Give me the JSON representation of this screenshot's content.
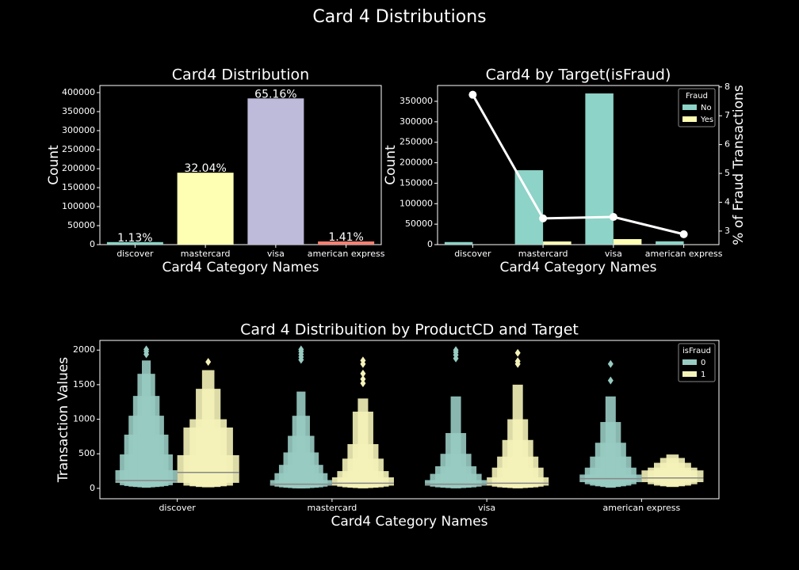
{
  "title": "Card 4 Distributions",
  "chart_data": [
    {
      "type": "bar",
      "title": "Card4 Distribution",
      "xlabel": "Card4 Category Names",
      "ylabel": "Count",
      "categories": [
        "discover",
        "mastercard",
        "visa",
        "american express"
      ],
      "values": [
        6673,
        189217,
        384767,
        8328
      ],
      "colors": [
        "#8dd3c7",
        "#ffffb3",
        "#bebada",
        "#fb8072"
      ],
      "annotations": [
        "1.13%",
        "32.04%",
        "65.16%",
        "1.41%"
      ],
      "ylim": [
        0,
        418750
      ],
      "yticks": [
        0,
        50000,
        100000,
        150000,
        200000,
        250000,
        300000,
        350000,
        400000
      ]
    },
    {
      "type": "bar",
      "title": "Card4 by Target(isFraud)",
      "xlabel": "Card4 Category Names",
      "ylabel": "Count",
      "y2label": "% of Fraud Transactions",
      "categories": [
        "discover",
        "mastercard",
        "visa",
        "american express"
      ],
      "legend_title": "Fraud",
      "legend": "upper right",
      "series": [
        {
          "name": "No",
          "color": "#8dd3c7",
          "values": [
            6300,
            181750,
            369300,
            8100
          ]
        },
        {
          "name": "Yes",
          "color": "#ffffb3",
          "values": [
            150,
            7700,
            13500,
            230
          ]
        }
      ],
      "line": {
        "color": "#ffffff",
        "axis": "y2",
        "values": [
          7.73,
          3.44,
          3.49,
          2.89
        ]
      },
      "ylim": [
        0,
        388700
      ],
      "yticks": [
        0,
        50000,
        100000,
        150000,
        200000,
        250000,
        300000,
        350000
      ],
      "y2lim": [
        2.53,
        8.05
      ],
      "y2ticks": [
        3,
        4,
        5,
        6,
        7,
        8
      ]
    },
    {
      "type": "boxen",
      "title": "Card 4 Distribuition by ProductCD and Target",
      "xlabel": "Card4 Category Names",
      "ylabel": "Transaction Values",
      "categories": [
        "discover",
        "mastercard",
        "visa",
        "american express"
      ],
      "legend_title": "isFraud",
      "legend": "upper right",
      "series": [
        {
          "name": "0",
          "color": "#98cbc2",
          "boxes": [
            {
              "median": 114,
              "levels": [
                [
                  80,
                  263
                ],
                [
                  46,
                  491
                ],
                [
                  34,
                  777
                ],
                [
                  25,
                  1051
                ],
                [
                  20,
                  1337
                ],
                [
                  15,
                  1657
                ],
                [
                  10,
                  1850
                ]
              ],
              "outliers": [
                1940,
                1980,
                2010
              ]
            },
            {
              "median": 60,
              "levels": [
                [
                  40,
                  120
                ],
                [
                  25,
                  220
                ],
                [
                  15,
                  340
                ],
                [
                  10,
                  520
                ],
                [
                  5,
                  760
                ],
                [
                  0,
                  1050
                ],
                [
                  0,
                  1400
                ]
              ],
              "outliers": [
                1860,
                1900,
                1940,
                1980,
                2010
              ]
            },
            {
              "median": 60,
              "levels": [
                [
                  40,
                  120
                ],
                [
                  25,
                  210
                ],
                [
                  15,
                  320
                ],
                [
                  10,
                  500
                ],
                [
                  5,
                  800
                ],
                [
                  0,
                  1330
                ]
              ],
              "outliers": [
                1880,
                1930,
                1970,
                2000
              ]
            },
            {
              "median": 140,
              "levels": [
                [
                  90,
                  200
                ],
                [
                  60,
                  300
                ],
                [
                  40,
                  460
                ],
                [
                  30,
                  660
                ],
                [
                  20,
                  960
                ],
                [
                  10,
                  1330
                ]
              ],
              "outliers": [
                1560,
                1800
              ]
            }
          ]
        },
        {
          "name": "1",
          "color": "#f4f2b8",
          "boxes": [
            {
              "median": 230,
              "levels": [
                [
                  80,
                  480
                ],
                [
                  40,
                  880
                ],
                [
                  30,
                  1000
                ],
                [
                  20,
                  1440
                ],
                [
                  15,
                  1710
                ]
              ],
              "outliers": [
                1830
              ]
            },
            {
              "median": 75,
              "levels": [
                [
                  40,
                  160
                ],
                [
                  25,
                  250
                ],
                [
                  15,
                  430
                ],
                [
                  10,
                  640
                ],
                [
                  5,
                  1110
                ],
                [
                  0,
                  1300
                ]
              ],
              "outliers": [
                1520,
                1580,
                1660,
                1800,
                1850
              ]
            },
            {
              "median": 75,
              "levels": [
                [
                  40,
                  160
                ],
                [
                  25,
                  300
                ],
                [
                  15,
                  460
                ],
                [
                  10,
                  700
                ],
                [
                  5,
                  1000
                ],
                [
                  0,
                  1500
                ]
              ],
              "outliers": [
                1800,
                1840,
                1960
              ]
            },
            {
              "median": 150,
              "levels": [
                [
                  90,
                  260
                ],
                [
                  60,
                  300
                ],
                [
                  40,
                  370
                ],
                [
                  30,
                  440
                ],
                [
                  20,
                  490
                ]
              ],
              "outliers": []
            }
          ]
        }
      ],
      "ylim": [
        -150,
        2140
      ],
      "yticks": [
        0,
        500,
        1000,
        1500,
        2000
      ]
    }
  ]
}
